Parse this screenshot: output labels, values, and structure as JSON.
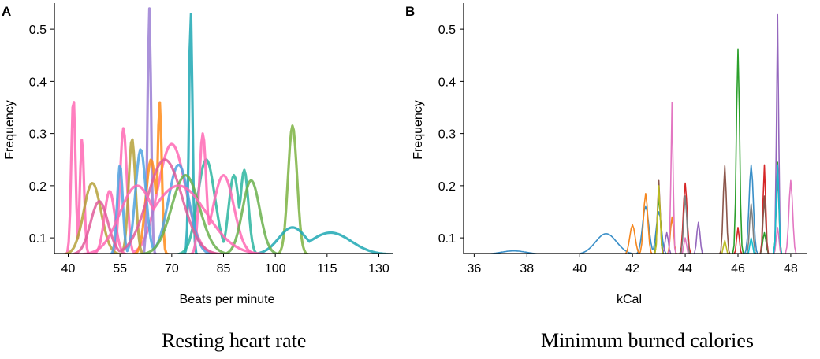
{
  "chart_data": [
    {
      "panel": "A",
      "type": "line",
      "subtype": "kde-density-curves",
      "caption": "Resting heart rate",
      "xlabel": "Beats per minute",
      "ylabel": "Frequency",
      "xlim": [
        36,
        134
      ],
      "ylim": [
        0.07,
        0.55
      ],
      "xticks": [
        40,
        55,
        70,
        85,
        100,
        115,
        130
      ],
      "yticks": [
        0.1,
        0.2,
        0.3,
        0.4,
        0.5
      ],
      "ytick_labels": [
        "0.1",
        "0.2",
        "0.3",
        "0.4",
        "0.5"
      ],
      "palette": [
        "#ff69b4",
        "#1fa8b4",
        "#9b7fd4",
        "#7cb342",
        "#ff8c1a",
        "#8c6bc4"
      ],
      "series": [
        {
          "name": "s1",
          "color": "#ff69b4",
          "peaks": [
            [
              41.5,
              0.37,
              0.6
            ],
            [
              44,
              0.29,
              0.6
            ],
            [
              56,
              0.31,
              1.0
            ],
            [
              70,
              0.28,
              4.0
            ]
          ]
        },
        {
          "name": "s2",
          "color": "#7cb342",
          "peaks": [
            [
              105,
              0.315,
              1.3
            ]
          ]
        },
        {
          "name": "s3",
          "color": "#1fa8b4",
          "peaks": [
            [
              105,
              0.12,
              4.0
            ],
            [
              116,
              0.11,
              6.0
            ],
            [
              75.5,
              0.535,
              0.5
            ]
          ]
        },
        {
          "name": "s4",
          "color": "#9b7fd4",
          "peaks": [
            [
              63.5,
              0.54,
              0.5
            ]
          ]
        },
        {
          "name": "s5",
          "color": "#ff8c1a",
          "peaks": [
            [
              66.5,
              0.36,
              0.6
            ],
            [
              64,
              0.25,
              1.5
            ]
          ]
        },
        {
          "name": "s6",
          "color": "#b5a13a",
          "peaks": [
            [
              47,
              0.205,
              2.5
            ],
            [
              58.5,
              0.29,
              1.0
            ]
          ]
        },
        {
          "name": "s7",
          "color": "#2bb5a0",
          "peaks": [
            [
              91,
              0.23,
              1.2
            ],
            [
              88,
              0.22,
              1.5
            ],
            [
              80,
              0.25,
              2.5
            ]
          ]
        },
        {
          "name": "s8",
          "color": "#ff69b4",
          "peaks": [
            [
              79,
              0.3,
              1.0
            ],
            [
              52,
              0.19,
              1.5
            ],
            [
              85,
              0.22,
              3.0
            ]
          ]
        },
        {
          "name": "s9",
          "color": "#4fa3e0",
          "peaks": [
            [
              61,
              0.27,
              1.5
            ],
            [
              72,
              0.24,
              3.0
            ],
            [
              55,
              0.24,
              0.8
            ]
          ]
        },
        {
          "name": "s10",
          "color": "#e05c9a",
          "peaks": [
            [
              68,
              0.25,
              5.0
            ],
            [
              49,
              0.17,
              2.5
            ]
          ]
        },
        {
          "name": "s11",
          "color": "#6ab04c",
          "peaks": [
            [
              74,
              0.22,
              4.0
            ],
            [
              93,
              0.21,
              2.5
            ]
          ]
        },
        {
          "name": "s12",
          "color": "#ff69b4",
          "peaks": [
            [
              72,
              0.2,
              8.0
            ],
            [
              60,
              0.2,
              5.0
            ]
          ]
        }
      ]
    },
    {
      "panel": "B",
      "type": "line",
      "subtype": "kde-density-curves",
      "caption": "Minimum burned calories",
      "xlabel": "kCal",
      "ylabel": "Frequency",
      "xlim": [
        35.6,
        48.6
      ],
      "ylim": [
        0.07,
        0.55
      ],
      "xticks": [
        36,
        38,
        40,
        42,
        44,
        46,
        48
      ],
      "yticks": [
        0.1,
        0.2,
        0.3,
        0.4,
        0.5
      ],
      "ytick_labels": [
        "0.1",
        "0.2",
        "0.3",
        "0.4",
        "0.5"
      ],
      "series": [
        {
          "name": "s1",
          "color": "#3a8fc8",
          "peaks": [
            [
              41.0,
              0.108,
              0.4
            ],
            [
              37.5,
              0.075,
              0.5
            ],
            [
              42.5,
              0.16,
              0.12
            ],
            [
              43.0,
              0.15,
              0.1
            ],
            [
              46.5,
              0.24,
              0.08
            ]
          ]
        },
        {
          "name": "s2",
          "color": "#f5871f",
          "peaks": [
            [
              42.0,
              0.125,
              0.1
            ],
            [
              42.5,
              0.185,
              0.08
            ],
            [
              43.5,
              0.14,
              0.06
            ]
          ]
        },
        {
          "name": "s3",
          "color": "#2ca02c",
          "peaks": [
            [
              46.0,
              0.462,
              0.06
            ],
            [
              47.5,
              0.245,
              0.05
            ],
            [
              43.0,
              0.18,
              0.06
            ],
            [
              47.0,
              0.11,
              0.06
            ]
          ]
        },
        {
          "name": "s4",
          "color": "#d62728",
          "peaks": [
            [
              44.0,
              0.205,
              0.07
            ],
            [
              47.0,
              0.24,
              0.05
            ],
            [
              46.0,
              0.12,
              0.05
            ]
          ]
        },
        {
          "name": "s5",
          "color": "#9467bd",
          "peaks": [
            [
              47.5,
              0.528,
              0.04
            ],
            [
              44.5,
              0.13,
              0.06
            ],
            [
              43.3,
              0.11,
              0.06
            ]
          ]
        },
        {
          "name": "s6",
          "color": "#8c564b",
          "peaks": [
            [
              45.5,
              0.238,
              0.06
            ],
            [
              43.0,
              0.21,
              0.05
            ],
            [
              47.0,
              0.18,
              0.05
            ]
          ]
        },
        {
          "name": "s7",
          "color": "#e377c2",
          "peaks": [
            [
              43.5,
              0.36,
              0.04
            ],
            [
              48.0,
              0.21,
              0.07
            ],
            [
              44.0,
              0.1,
              0.05
            ],
            [
              47.5,
              0.12,
              0.05
            ]
          ]
        },
        {
          "name": "s8",
          "color": "#7f7f7f",
          "peaks": [
            [
              46.5,
              0.165,
              0.06
            ],
            [
              44.0,
              0.18,
              0.06
            ],
            [
              47.5,
              0.22,
              0.05
            ]
          ]
        },
        {
          "name": "s9",
          "color": "#bcbd22",
          "peaks": [
            [
              43.0,
              0.2,
              0.05
            ],
            [
              45.5,
              0.095,
              0.05
            ]
          ]
        },
        {
          "name": "s10",
          "color": "#17becf",
          "peaks": [
            [
              47.5,
              0.24,
              0.05
            ],
            [
              46.5,
              0.1,
              0.05
            ]
          ]
        }
      ]
    }
  ]
}
